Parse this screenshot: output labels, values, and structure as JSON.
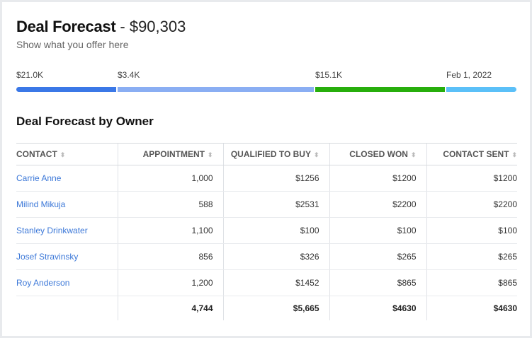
{
  "header": {
    "title": "Deal Forecast",
    "amount": "- $90,303",
    "subtitle": "Show what you offer here"
  },
  "progress": {
    "segments": [
      {
        "label": "$21.0K",
        "color": "#3b78e7",
        "share": 0.2
      },
      {
        "label": "$3.4K",
        "color": "#8aaef3",
        "share": 0.4
      },
      {
        "label": "$15.1K",
        "color": "#27ae0c",
        "share": 0.26
      },
      {
        "label": "Feb 1, 2022",
        "color": "#5bc0f8",
        "share": 0.14
      }
    ]
  },
  "table": {
    "title": "Deal Forecast by Owner",
    "columns": [
      "CONTACT",
      "APPOINTMENT",
      "QUALIFIED TO BUY",
      "CLOSED WON",
      "CONTACT SENT"
    ],
    "rows": [
      [
        "Carrie Anne",
        "1,000",
        "$1256",
        "$1200",
        "$1200"
      ],
      [
        "Milind Mikuja",
        "588",
        "$2531",
        "$2200",
        "$2200"
      ],
      [
        "Stanley Drinkwater",
        "1,100",
        "$100",
        "$100",
        "$100"
      ],
      [
        "Josef Stravinsky",
        "856",
        "$326",
        "$265",
        "$265"
      ],
      [
        "Roy Anderson",
        "1,200",
        "$1452",
        "$865",
        "$865"
      ]
    ],
    "totals": [
      "",
      "4,744",
      "$5,665",
      "$4630",
      "$4630"
    ]
  }
}
